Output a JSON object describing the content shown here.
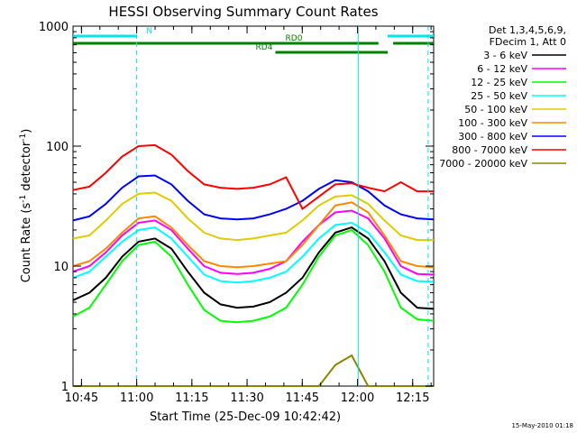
{
  "chart_data": {
    "type": "line",
    "title": "HESSI Observing Summary Count Rates",
    "xlabel": "Start Time (25-Dec-09 10:42:42)",
    "ylabel": "Count Rate (s",
    "ylabel_sup": "-1",
    "ylabel_mid": " detector",
    "ylabel_sup2": "-1",
    "ylabel_end": ")",
    "y_scale": "log",
    "ylim": [
      1,
      1000
    ],
    "xlim_minutes": [
      0,
      98
    ],
    "x_ticks": [
      {
        "label": "10:45",
        "minute": 2.3
      },
      {
        "label": "11:00",
        "minute": 17.3
      },
      {
        "label": "11:15",
        "minute": 32.3
      },
      {
        "label": "11:30",
        "minute": 47.3
      },
      {
        "label": "11:45",
        "minute": 62.3
      },
      {
        "label": "12:00",
        "minute": 77.3
      },
      {
        "label": "12:15",
        "minute": 92.3
      }
    ],
    "y_ticks": [
      {
        "label": "1",
        "value": 1
      },
      {
        "label": "10",
        "value": 10
      },
      {
        "label": "100",
        "value": 100
      },
      {
        "label": "1000",
        "value": 1000
      }
    ],
    "legend": {
      "header_line1": "Det 1,3,4,5,6,9,",
      "header_line2": "FDecim 1, Att 0",
      "placement": "right"
    },
    "series": [
      {
        "name": "3 - 6 keV",
        "color": "#000000",
        "values": [
          5.2,
          6,
          8,
          12,
          16,
          17,
          14,
          9,
          6,
          4.8,
          4.5,
          4.6,
          5,
          6,
          8,
          13,
          19,
          21,
          17,
          11,
          6,
          4.5,
          4.4
        ]
      },
      {
        "name": "6 - 12 keV",
        "color": "#ff00ff",
        "values": [
          9,
          10,
          13,
          18,
          23,
          24,
          20,
          14,
          10,
          8.8,
          8.6,
          8.8,
          9.5,
          11,
          16,
          22,
          28,
          29,
          25,
          17,
          10,
          8.6,
          8.5
        ]
      },
      {
        "name": "12 - 25 keV",
        "color": "#00ff00",
        "values": [
          3.8,
          4.5,
          7,
          11,
          15,
          16,
          12,
          7,
          4.3,
          3.5,
          3.4,
          3.5,
          3.8,
          4.5,
          7,
          12,
          18,
          20,
          15,
          9,
          4.5,
          3.6,
          3.5
        ]
      },
      {
        "name": "25 - 50 keV",
        "color": "#00ffff",
        "values": [
          8,
          9,
          12,
          16,
          20,
          21,
          17,
          12,
          8.5,
          7.5,
          7.3,
          7.5,
          8,
          9,
          12,
          17,
          22,
          23,
          19,
          13,
          8.5,
          7.5,
          7.4
        ]
      },
      {
        "name": "50 - 100 keV",
        "color": "#ddcc00",
        "values": [
          17,
          18,
          24,
          33,
          40,
          41,
          35,
          25,
          19,
          17,
          16.5,
          17,
          18,
          19,
          24,
          32,
          38,
          39,
          33,
          24,
          18,
          16.5,
          16.5
        ]
      },
      {
        "name": "100 - 300 keV",
        "color": "#ff8800",
        "values": [
          10,
          11,
          14,
          19,
          25,
          26,
          21,
          15,
          11,
          10,
          9.8,
          10,
          10.5,
          11,
          15,
          22,
          32,
          34,
          28,
          18,
          11,
          10,
          9.8
        ]
      },
      {
        "name": "300 - 800 keV",
        "color": "#0000ff",
        "values": [
          24,
          26,
          33,
          45,
          56,
          57,
          48,
          35,
          27,
          25,
          24.5,
          25,
          27,
          30,
          35,
          44,
          52,
          50,
          42,
          32,
          27,
          25,
          24.5
        ]
      },
      {
        "name": "800 - 7000 keV",
        "color": "#ff0000",
        "values": [
          43,
          46,
          60,
          82,
          100,
          102,
          85,
          62,
          48,
          45,
          44,
          45,
          48,
          55,
          30,
          38,
          48,
          49,
          45,
          42,
          50,
          42,
          42
        ]
      },
      {
        "name": "7000 - 20000 keV",
        "color": "#888800",
        "values": [
          1,
          1,
          1,
          1,
          1,
          1,
          1,
          1,
          1,
          1,
          1,
          1,
          1,
          1,
          1,
          1,
          1.5,
          1.8,
          1,
          1,
          1,
          1,
          1
        ]
      }
    ],
    "flags": [
      {
        "label": "N",
        "color": "#00e5ee",
        "segments": [
          [
            0,
            17.3
          ],
          [
            85.5,
            98
          ]
        ]
      },
      {
        "label": "RD0",
        "color": "#008000",
        "segments": [
          [
            0,
            83
          ],
          [
            87,
            98
          ]
        ]
      },
      {
        "label": "RD4",
        "color": "#008000",
        "segments": [
          [
            55,
            85.5
          ]
        ]
      }
    ],
    "vlines": [
      {
        "minute": 17.3,
        "style": "dashed"
      },
      {
        "minute": 77.5,
        "style": "solid"
      },
      {
        "minute": 96.5,
        "style": "dashed"
      }
    ]
  },
  "footer": {
    "timestamp": "15-May-2010 01:18"
  }
}
